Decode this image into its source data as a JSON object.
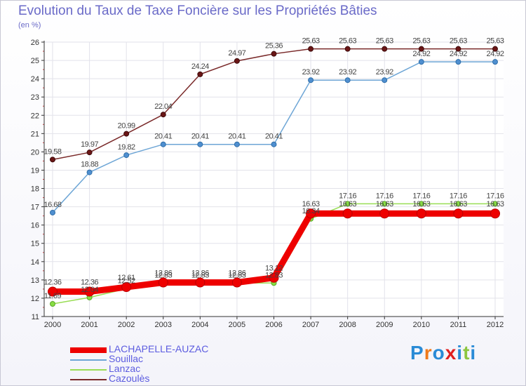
{
  "title": "Evolution du Taux de Taxe Foncière sur les Propriétés Bâties",
  "unit_label": "(en %)",
  "logo": "Proxiti",
  "chart_data": {
    "type": "line",
    "title": "Evolution du Taux de Taxe Foncière sur les Propriétés Bâties",
    "ylabel": "(en %)",
    "xlabel": "",
    "ylim": [
      11,
      26
    ],
    "yticks": [
      "11",
      "12",
      "13",
      "14",
      "15",
      "16",
      "17",
      "18",
      "19",
      "20",
      "21",
      "22",
      "23",
      "24",
      "25",
      "26"
    ],
    "categories": [
      "2000",
      "2001",
      "2002",
      "2003",
      "2004",
      "2005",
      "2006",
      "2007",
      "2008",
      "2009",
      "2010",
      "2011",
      "2012"
    ],
    "grid": true,
    "legend_position": "bottom-left",
    "series": [
      {
        "name": "LACHAPELLE-AUZAC",
        "color": "#ee0000",
        "values": [
          12.36,
          12.36,
          12.61,
          12.86,
          12.86,
          12.86,
          13.12,
          16.63,
          16.63,
          16.63,
          16.63,
          16.63,
          16.63
        ],
        "labels": [
          "12.36",
          "12.36",
          "12.61",
          "12.86",
          "12.86",
          "12.86",
          "13.12",
          "16.63",
          "16.63",
          "16.63",
          "16.63",
          "16.63",
          "16.63"
        ]
      },
      {
        "name": "Souillac",
        "color": "#6ea6d6",
        "values": [
          16.68,
          18.88,
          19.82,
          20.41,
          20.41,
          20.41,
          20.41,
          23.92,
          23.92,
          23.92,
          24.92,
          24.92,
          24.92
        ],
        "labels": [
          "16.68",
          "18.88",
          "19.82",
          "20.41",
          "20.41",
          "20.41",
          "20.41",
          "23.92",
          "23.92",
          "23.92",
          "24.92",
          "24.92",
          "24.92"
        ]
      },
      {
        "name": "Lanzac",
        "color": "#99dd55",
        "values": [
          11.69,
          12.04,
          12.52,
          12.83,
          12.83,
          12.83,
          12.83,
          16.34,
          17.16,
          17.16,
          17.16,
          17.16,
          17.16
        ],
        "labels": [
          "11.69",
          "12.04",
          "12.52",
          "12.83",
          "12.83",
          "12.83",
          "12.83",
          "16.34",
          "17.16",
          "17.16",
          "17.16",
          "17.16",
          "17.16"
        ]
      },
      {
        "name": "Cazoulès",
        "color": "#7a2a2a",
        "values": [
          19.58,
          19.97,
          20.99,
          22.04,
          24.24,
          24.97,
          25.36,
          25.63,
          25.63,
          25.63,
          25.63,
          25.63,
          25.63
        ],
        "labels": [
          "19.58",
          "19.97",
          "20.99",
          "22.04",
          "24.24",
          "24.97",
          "25.36",
          "25.63",
          "25.63",
          "25.63",
          "25.63",
          "25.63",
          "25.63"
        ]
      }
    ]
  }
}
